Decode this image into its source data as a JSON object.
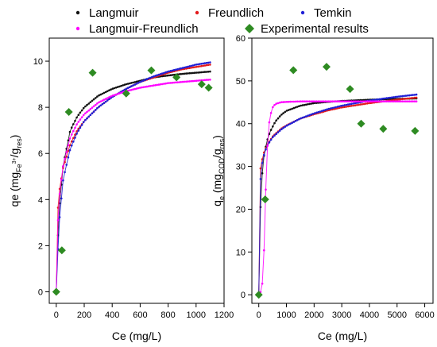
{
  "legend": {
    "items": [
      {
        "label": "Langmuir",
        "color": "#111111",
        "marker": "dot"
      },
      {
        "label": "Freundlich",
        "color": "#e31a1c",
        "marker": "dot"
      },
      {
        "label": "Temkin",
        "color": "#1f1fd6",
        "marker": "dot"
      },
      {
        "label": "Langmuir-Freundlich",
        "color": "#ff00ff",
        "marker": "dot"
      },
      {
        "label": "Experimental results",
        "color": "#2e8b22",
        "marker": "diamond"
      }
    ]
  },
  "chart_data": [
    {
      "type": "scatter",
      "xlabel": "Ce (mg/L)",
      "ylabel": "qe (mg_Fe3+/g_res)",
      "xlim": [
        -50,
        1200
      ],
      "ylim": [
        -0.5,
        11
      ],
      "xticks": [
        0,
        200,
        400,
        600,
        800,
        1000,
        1200
      ],
      "yticks": [
        0,
        2,
        4,
        6,
        8,
        10
      ],
      "series": [
        {
          "name": "Langmuir",
          "model": "curve",
          "color": "#111111",
          "x": [
            0,
            10,
            25,
            50,
            100,
            150,
            200,
            300,
            400,
            500,
            600,
            700,
            800,
            900,
            1000,
            1100
          ],
          "y": [
            0,
            2.2,
            3.9,
            5.5,
            7.0,
            7.6,
            8.0,
            8.5,
            8.8,
            9.0,
            9.15,
            9.3,
            9.38,
            9.45,
            9.5,
            9.55
          ]
        },
        {
          "name": "Freundlich",
          "model": "curve",
          "color": "#e31a1c",
          "x": [
            0,
            10,
            25,
            50,
            100,
            150,
            200,
            300,
            400,
            500,
            600,
            700,
            800,
            900,
            1000,
            1100
          ],
          "y": [
            0,
            3.5,
            4.5,
            5.4,
            6.4,
            7.0,
            7.4,
            8.0,
            8.45,
            8.8,
            9.1,
            9.3,
            9.5,
            9.65,
            9.75,
            9.85
          ]
        },
        {
          "name": "Temkin",
          "model": "curve",
          "color": "#1f1fd6",
          "x": [
            0,
            10,
            25,
            50,
            100,
            150,
            200,
            300,
            400,
            500,
            600,
            700,
            800,
            900,
            1000,
            1100
          ],
          "y": [
            0,
            1.6,
            3.3,
            4.9,
            6.2,
            6.9,
            7.4,
            8.0,
            8.45,
            8.8,
            9.1,
            9.35,
            9.55,
            9.7,
            9.85,
            9.95
          ]
        },
        {
          "name": "Langmuir-Freundlich",
          "model": "curve",
          "color": "#ff00ff",
          "x": [
            0,
            10,
            25,
            50,
            100,
            150,
            200,
            300,
            400,
            500,
            600,
            700,
            800,
            900,
            1000,
            1100
          ],
          "y": [
            0,
            2.9,
            4.3,
            5.5,
            6.7,
            7.3,
            7.7,
            8.2,
            8.5,
            8.7,
            8.85,
            8.95,
            9.05,
            9.1,
            9.15,
            9.2
          ]
        },
        {
          "name": "Experimental results",
          "model": "points",
          "color": "#2e8b22",
          "x": [
            0,
            40,
            90,
            260,
            500,
            680,
            860,
            1040,
            1090
          ],
          "y": [
            0,
            1.8,
            7.8,
            9.5,
            8.6,
            9.6,
            9.3,
            9.0,
            8.85
          ]
        }
      ]
    },
    {
      "type": "scatter",
      "xlabel": "Ce (mg/L)",
      "ylabel": "qe (mg_COD/g_res)",
      "xlim": [
        -250,
        6300
      ],
      "ylim": [
        -2,
        60
      ],
      "xticks": [
        0,
        1000,
        2000,
        3000,
        4000,
        5000,
        6000
      ],
      "yticks": [
        0,
        10,
        20,
        30,
        40,
        50,
        60
      ],
      "series": [
        {
          "name": "Langmuir",
          "model": "curve",
          "color": "#111111",
          "x": [
            0,
            30,
            60,
            100,
            150,
            200,
            300,
            400,
            600,
            800,
            1000,
            1500,
            2000,
            2500,
            3000,
            4000,
            5000,
            5700
          ],
          "y": [
            0,
            12,
            20,
            26,
            30.5,
            33,
            36,
            38,
            40.5,
            42,
            43,
            44.2,
            44.8,
            45.1,
            45.3,
            45.6,
            45.8,
            45.9
          ]
        },
        {
          "name": "Freundlich",
          "model": "curve",
          "color": "#e31a1c",
          "x": [
            0,
            20,
            50,
            100,
            200,
            300,
            500,
            800,
            1000,
            1500,
            2000,
            2500,
            3000,
            4000,
            5000,
            5700
          ],
          "y": [
            0,
            26,
            29,
            31,
            33.5,
            35,
            37,
            38.8,
            39.6,
            41.2,
            42.2,
            43.1,
            43.8,
            44.8,
            45.6,
            46.1
          ]
        },
        {
          "name": "Temkin",
          "model": "curve",
          "color": "#1f1fd6",
          "x": [
            0,
            20,
            50,
            100,
            200,
            300,
            500,
            800,
            1000,
            1500,
            2000,
            2500,
            3000,
            4000,
            5000,
            5700
          ],
          "y": [
            0,
            20,
            26,
            30,
            33,
            34.8,
            36.8,
            38.6,
            39.5,
            41.2,
            42.4,
            43.4,
            44.2,
            45.4,
            46.3,
            46.8
          ]
        },
        {
          "name": "Langmuir-Freundlich",
          "model": "curve",
          "color": "#ff00ff",
          "x": [
            0,
            100,
            150,
            200,
            250,
            300,
            350,
            400,
            500,
            600,
            800,
            1000,
            1500,
            2000,
            3000,
            4000,
            5000,
            5700
          ],
          "y": [
            0,
            1,
            4,
            12,
            24,
            33,
            38.5,
            41.5,
            43.8,
            44.6,
            45.0,
            45.1,
            45.2,
            45.2,
            45.2,
            45.2,
            45.2,
            45.2
          ]
        },
        {
          "name": "Experimental results",
          "model": "points",
          "color": "#2e8b22",
          "x": [
            0,
            230,
            1250,
            2450,
            3300,
            3700,
            4500,
            5650
          ],
          "y": [
            0,
            22.3,
            52.5,
            53.3,
            48.1,
            40.0,
            38.8,
            38.3
          ]
        }
      ]
    }
  ]
}
